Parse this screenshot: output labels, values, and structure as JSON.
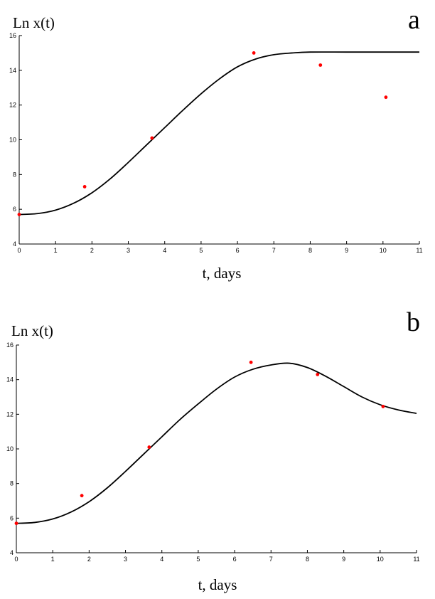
{
  "chart_data": [
    {
      "type": "line",
      "panel_label": "a",
      "ylabel": "Ln x(t)",
      "xlabel": "t, days",
      "xlim": [
        0,
        11
      ],
      "ylim": [
        4,
        16
      ],
      "xticks": [
        0,
        1,
        2,
        3,
        4,
        5,
        6,
        7,
        8,
        9,
        10,
        11
      ],
      "yticks": [
        4,
        6,
        8,
        10,
        12,
        14,
        16
      ],
      "grid": false,
      "series": [
        {
          "kind": "line",
          "color": "#000000",
          "x": [
            0,
            0.5,
            1,
            1.5,
            2,
            2.5,
            3,
            3.5,
            4,
            4.5,
            5,
            5.5,
            6,
            6.5,
            7,
            7.5,
            8,
            9,
            10,
            11
          ],
          "y": [
            5.7,
            5.75,
            5.95,
            6.35,
            6.95,
            7.75,
            8.7,
            9.7,
            10.7,
            11.7,
            12.65,
            13.5,
            14.2,
            14.65,
            14.9,
            15.0,
            15.05,
            15.05,
            15.05,
            15.05
          ]
        },
        {
          "kind": "scatter",
          "color": "#ff0000",
          "x": [
            0,
            1.8,
            3.65,
            6.45,
            8.28,
            10.08
          ],
          "y": [
            5.7,
            7.3,
            10.1,
            15.0,
            14.3,
            12.45
          ]
        }
      ]
    },
    {
      "type": "line",
      "panel_label": "b",
      "ylabel": "Ln x(t)",
      "xlabel": "t, days",
      "xlim": [
        0,
        11
      ],
      "ylim": [
        4,
        16
      ],
      "xticks": [
        0,
        1,
        2,
        3,
        4,
        5,
        6,
        7,
        8,
        9,
        10,
        11
      ],
      "yticks": [
        4,
        6,
        8,
        10,
        12,
        14,
        16
      ],
      "grid": false,
      "series": [
        {
          "kind": "line",
          "color": "#000000",
          "x": [
            0,
            0.5,
            1,
            1.5,
            2,
            2.5,
            3,
            3.5,
            4,
            4.5,
            5,
            5.5,
            6,
            6.5,
            7,
            7.5,
            8,
            8.5,
            9,
            9.5,
            10,
            10.5,
            11
          ],
          "y": [
            5.7,
            5.75,
            5.95,
            6.35,
            6.95,
            7.75,
            8.7,
            9.7,
            10.7,
            11.7,
            12.6,
            13.45,
            14.15,
            14.6,
            14.85,
            14.95,
            14.7,
            14.2,
            13.6,
            13.0,
            12.55,
            12.25,
            12.05
          ]
        },
        {
          "kind": "scatter",
          "color": "#ff0000",
          "x": [
            0,
            1.8,
            3.65,
            6.45,
            8.28,
            10.08
          ],
          "y": [
            5.7,
            7.3,
            10.1,
            15.0,
            14.3,
            12.45
          ]
        }
      ]
    }
  ]
}
